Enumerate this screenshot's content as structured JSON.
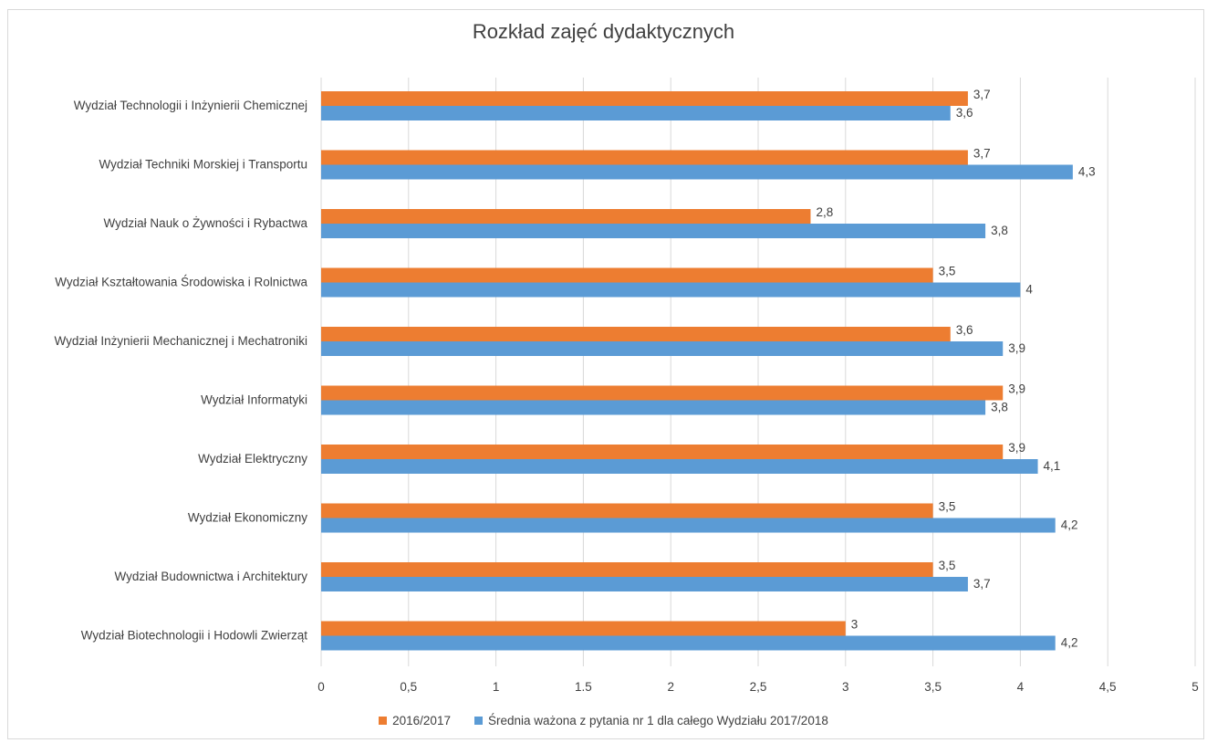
{
  "chart_data": {
    "type": "bar",
    "orientation": "horizontal",
    "title": "Rozkład zajęć dydaktycznych",
    "categories": [
      "Wydział Technologii i Inżynierii Chemicznej",
      "Wydział Techniki Morskiej i Transportu",
      "Wydział Nauk o Żywności i Rybactwa",
      "Wydział Kształtowania Środowiska i Rolnictwa",
      "Wydział Inżynierii Mechanicznej i Mechatroniki",
      "Wydział Informatyki",
      "Wydział Elektryczny",
      "Wydział Ekonomiczny",
      "Wydział Budownictwa i Architektury",
      "Wydział Biotechnologii i Hodowli Zwierząt"
    ],
    "series": [
      {
        "name": "2016/2017",
        "color": "#ED7D31",
        "values": [
          3.7,
          3.7,
          2.8,
          3.5,
          3.6,
          3.9,
          3.9,
          3.5,
          3.5,
          3
        ],
        "labels": [
          "3,7",
          "3,7",
          "2,8",
          "3,5",
          "3,6",
          "3,9",
          "3,9",
          "3,5",
          "3,5",
          "3"
        ]
      },
      {
        "name": "Średnia ważona z pytania nr 1 dla całego Wydziału 2017/2018",
        "color": "#5B9BD5",
        "values": [
          3.6,
          4.3,
          3.8,
          4,
          3.9,
          3.8,
          4.1,
          4.2,
          3.7,
          4.2
        ],
        "labels": [
          "3,6",
          "4,3",
          "3,8",
          "4",
          "3,9",
          "3,8",
          "4,1",
          "4,2",
          "3,7",
          "4,2"
        ]
      }
    ],
    "xlim": [
      0,
      5
    ],
    "x_ticks": [
      0,
      0.5,
      1,
      1.5,
      2,
      2.5,
      3,
      3.5,
      4,
      4.5,
      5
    ],
    "x_tick_labels": [
      "0",
      "0,5",
      "1",
      "1.5",
      "2",
      "2,5",
      "3",
      "3,5",
      "4",
      "4,5",
      "5"
    ],
    "grid": "vertical",
    "legend_position": "bottom",
    "gridline_color": "#d9d9d9"
  }
}
